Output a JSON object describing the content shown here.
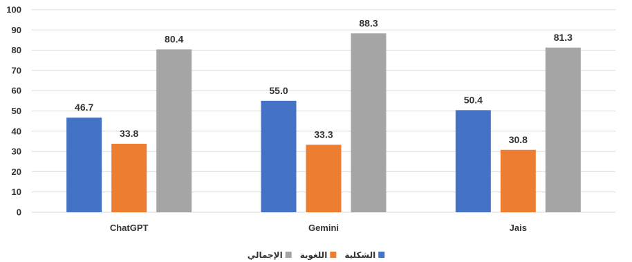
{
  "chart_data": {
    "type": "bar",
    "categories": [
      "ChatGPT",
      "Gemini",
      "Jais"
    ],
    "series": [
      {
        "name": "الشكلية",
        "color": "#4472c4",
        "values": [
          46.7,
          55.0,
          50.4
        ]
      },
      {
        "name": "اللغوية",
        "color": "#ed7d31",
        "values": [
          33.8,
          33.3,
          30.8
        ]
      },
      {
        "name": "الإجمالي",
        "color": "#a5a5a5",
        "values": [
          80.4,
          88.3,
          81.3
        ]
      }
    ],
    "ylim": [
      0,
      100
    ],
    "yticks": [
      0,
      10,
      20,
      30,
      40,
      50,
      60,
      70,
      80,
      90,
      100
    ],
    "grid": true,
    "legend_position": "bottom",
    "value_format_decimals": 1
  }
}
